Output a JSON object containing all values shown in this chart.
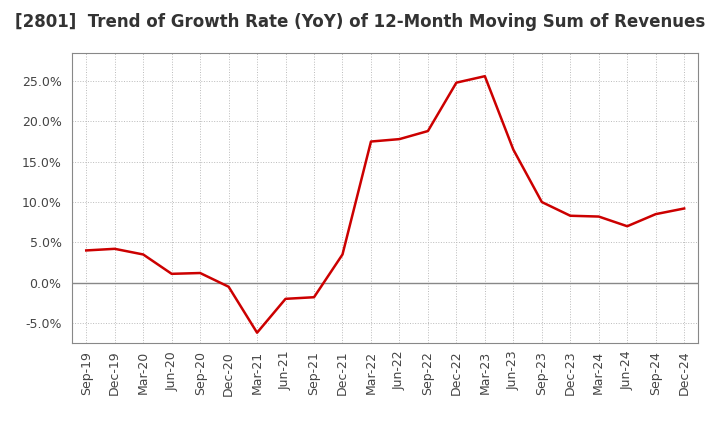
{
  "title": "[2801]  Trend of Growth Rate (YoY) of 12-Month Moving Sum of Revenues",
  "line_color": "#CC0000",
  "background_color": "#FFFFFF",
  "grid_color": "#BBBBBB",
  "frame_color": "#888888",
  "zero_line_color": "#888888",
  "x_labels": [
    "Sep-19",
    "Dec-19",
    "Mar-20",
    "Jun-20",
    "Sep-20",
    "Dec-20",
    "Mar-21",
    "Jun-21",
    "Sep-21",
    "Dec-21",
    "Mar-22",
    "Jun-22",
    "Sep-22",
    "Dec-22",
    "Mar-23",
    "Jun-23",
    "Sep-23",
    "Dec-23",
    "Mar-24",
    "Jun-24",
    "Sep-24",
    "Dec-24"
  ],
  "y_values": [
    0.04,
    0.042,
    0.035,
    0.011,
    0.012,
    -0.005,
    -0.062,
    -0.02,
    -0.018,
    0.035,
    0.175,
    0.178,
    0.188,
    0.248,
    0.256,
    0.165,
    0.1,
    0.083,
    0.082,
    0.07,
    0.085,
    0.092
  ],
  "ylim": [
    -0.075,
    0.285
  ],
  "yticks": [
    -0.05,
    0.0,
    0.05,
    0.1,
    0.15,
    0.2,
    0.25
  ],
  "ytick_labels": [
    "-5.0%",
    "0.0%",
    "5.0%",
    "10.0%",
    "15.0%",
    "20.0%",
    "25.0%"
  ],
  "title_fontsize": 12,
  "tick_fontsize": 9,
  "line_width": 1.8,
  "title_color": "#333333"
}
